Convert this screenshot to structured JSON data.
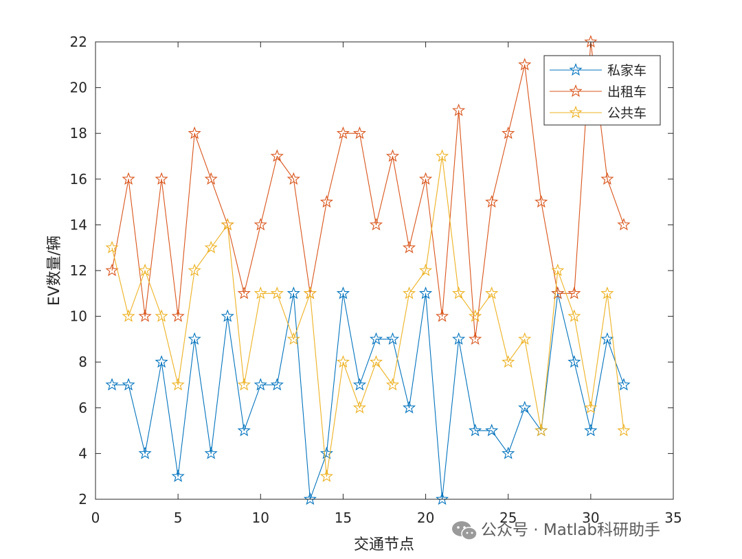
{
  "chart_data": {
    "type": "line",
    "xlabel": "交通节点",
    "ylabel": "EV数量/辆",
    "xlim": [
      0,
      35
    ],
    "ylim": [
      2,
      22
    ],
    "xticks": [
      0,
      5,
      10,
      15,
      20,
      25,
      30,
      35
    ],
    "yticks": [
      2,
      4,
      6,
      8,
      10,
      12,
      14,
      16,
      18,
      20,
      22
    ],
    "grid": false,
    "legend_position": "top-right",
    "marker": "star",
    "x": [
      1,
      2,
      3,
      4,
      5,
      6,
      7,
      8,
      9,
      10,
      11,
      12,
      13,
      14,
      15,
      16,
      17,
      18,
      19,
      20,
      21,
      22,
      23,
      24,
      25,
      26,
      27,
      28,
      29,
      30,
      31,
      32
    ],
    "series": [
      {
        "name": "私家车",
        "color": "#0072BD",
        "values": [
          7,
          7,
          4,
          8,
          3,
          9,
          4,
          10,
          5,
          7,
          7,
          11,
          2,
          4,
          11,
          7,
          9,
          9,
          6,
          11,
          2,
          9,
          5,
          5,
          4,
          6,
          5,
          11,
          8,
          5,
          9,
          7
        ]
      },
      {
        "name": "出租车",
        "color": "#D95319",
        "values": [
          12,
          16,
          10,
          16,
          10,
          18,
          16,
          14,
          11,
          14,
          17,
          16,
          11,
          15,
          18,
          18,
          14,
          17,
          13,
          16,
          10,
          19,
          9,
          15,
          18,
          21,
          15,
          11,
          11,
          22,
          16,
          14
        ]
      },
      {
        "name": "公共车",
        "color": "#EDB120",
        "values": [
          13,
          10,
          12,
          10,
          7,
          12,
          13,
          14,
          7,
          11,
          11,
          9,
          11,
          3,
          8,
          6,
          8,
          7,
          11,
          12,
          17,
          11,
          10,
          11,
          8,
          9,
          5,
          12,
          10,
          6,
          11,
          5
        ]
      }
    ]
  },
  "watermark": {
    "text": "公众号 · Matlab科研助手",
    "icon": "wechat-icon"
  }
}
